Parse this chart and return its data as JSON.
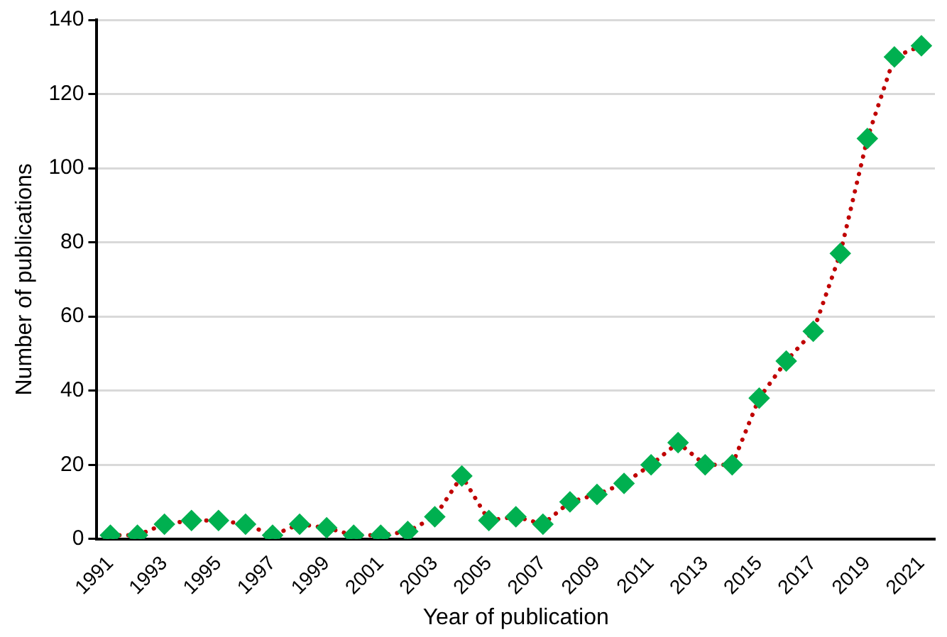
{
  "chart_data": {
    "type": "line",
    "xlabel": "Year of publication",
    "ylabel": "Number of publications",
    "categories": [
      "1991",
      null,
      "1993",
      null,
      "1995",
      null,
      "1997",
      null,
      "1999",
      null,
      "2001",
      null,
      "2003",
      null,
      "2005",
      null,
      "2007",
      null,
      "2009",
      null,
      "2011",
      null,
      "2013",
      null,
      "2015",
      null,
      "2017",
      null,
      "2019",
      null,
      "2021"
    ],
    "series": [
      {
        "color": "#00b050",
        "values": [
          1,
          1,
          4,
          5,
          5,
          4,
          1,
          4,
          3,
          1,
          1,
          2,
          6,
          17,
          5,
          6,
          4,
          10,
          12,
          15,
          20,
          26,
          20,
          20,
          38,
          48,
          56,
          77,
          108,
          130,
          133
        ]
      }
    ],
    "ylim": [
      0,
      140
    ],
    "yticks": [
      0,
      20,
      40,
      60,
      80,
      100,
      120,
      140
    ],
    "grid": "y",
    "marker": "diamond",
    "line_style": "dotted",
    "legend": false
  }
}
